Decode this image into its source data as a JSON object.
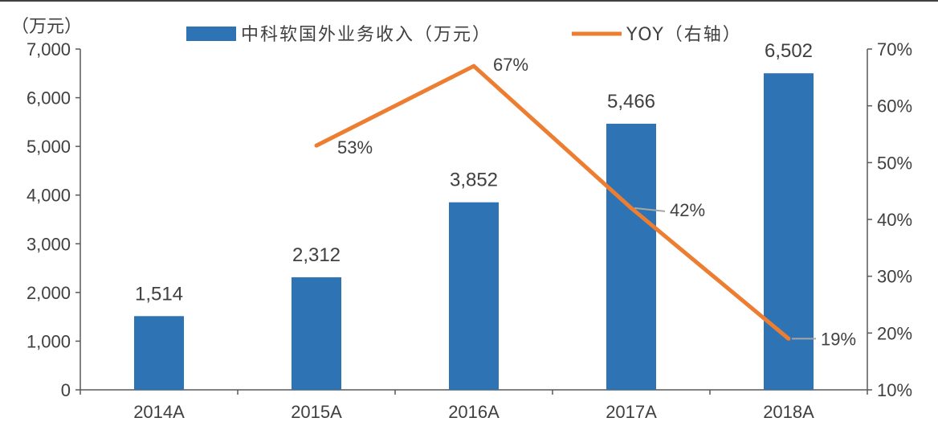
{
  "chart_data": {
    "type": "bar",
    "title": "",
    "y_left_unit": "（万元）",
    "categories": [
      "2014A",
      "2015A",
      "2016A",
      "2017A",
      "2018A"
    ],
    "series": [
      {
        "name": "中科软国外业务收入（万元）",
        "type": "bar",
        "axis": "left",
        "color": "#2E74B5",
        "values": [
          1514,
          2312,
          3852,
          5466,
          6502
        ],
        "value_labels": [
          "1,514",
          "2,312",
          "3,852",
          "5,466",
          "6,502"
        ]
      },
      {
        "name": "YOY（右轴）",
        "type": "line",
        "axis": "right",
        "color": "#ED7D31",
        "values": [
          null,
          0.53,
          0.67,
          0.42,
          0.19
        ],
        "value_labels": [
          "",
          "53%",
          "67%",
          "42%",
          "19%"
        ]
      }
    ],
    "y_left": {
      "min": 0,
      "max": 7000,
      "step": 1000,
      "tick_labels": [
        "0",
        "1,000",
        "2,000",
        "3,000",
        "4,000",
        "5,000",
        "6,000",
        "7,000"
      ]
    },
    "y_right": {
      "min": 0.1,
      "max": 0.7,
      "step": 0.1,
      "tick_labels": [
        "10%",
        "20%",
        "30%",
        "40%",
        "50%",
        "60%",
        "70%"
      ]
    },
    "grid": false,
    "legend_position": "top"
  }
}
